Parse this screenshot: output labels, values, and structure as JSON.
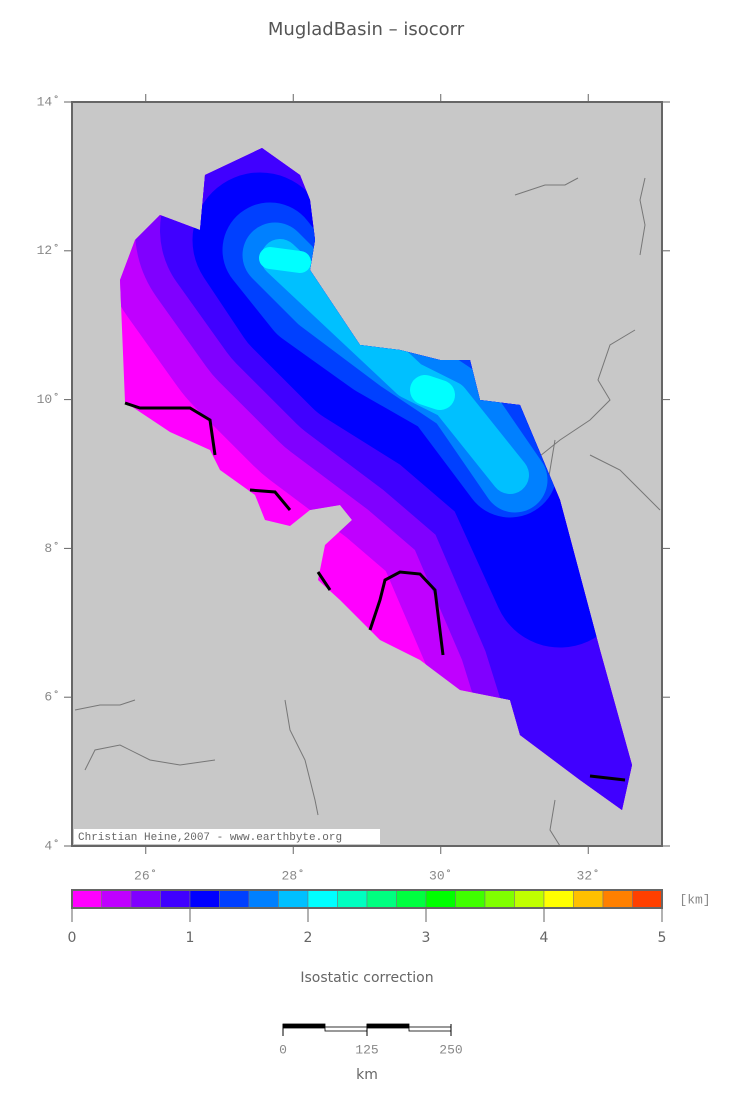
{
  "title": "MugladBasin – isocorr",
  "map": {
    "lon_range": [
      25,
      33
    ],
    "lat_range": [
      4,
      14
    ],
    "lat_ticks": [
      {
        "value": 14,
        "label": "14˚"
      },
      {
        "value": 12,
        "label": "12˚"
      },
      {
        "value": 10,
        "label": "10˚"
      },
      {
        "value": 8,
        "label": "8˚"
      },
      {
        "value": 6,
        "label": "6˚"
      },
      {
        "value": 4,
        "label": "4˚"
      }
    ],
    "lon_ticks": [
      {
        "value": 26,
        "label": "26˚"
      },
      {
        "value": 28,
        "label": "28˚"
      },
      {
        "value": 30,
        "label": "30˚"
      },
      {
        "value": 32,
        "label": "32˚"
      }
    ],
    "credit": "Christian Heine,2007 - www.earthbyte.org"
  },
  "colorbar": {
    "unit": "[km]",
    "range": [
      0,
      5
    ],
    "ticks": [
      0,
      1,
      2,
      3,
      4,
      5
    ],
    "label": "Isostatic correction",
    "colors": [
      "#ff00ff",
      "#c000ff",
      "#8000ff",
      "#4000ff",
      "#0000ff",
      "#0040ff",
      "#0080ff",
      "#00c0ff",
      "#00ffff",
      "#00ffc0",
      "#00ff80",
      "#00ff40",
      "#00ff00",
      "#40ff00",
      "#80ff00",
      "#c0ff00",
      "#ffff00",
      "#ffc000",
      "#ff8000",
      "#ff4000"
    ]
  },
  "scale_bar": {
    "ticks": [
      0,
      125,
      250
    ],
    "unit": "km"
  }
}
